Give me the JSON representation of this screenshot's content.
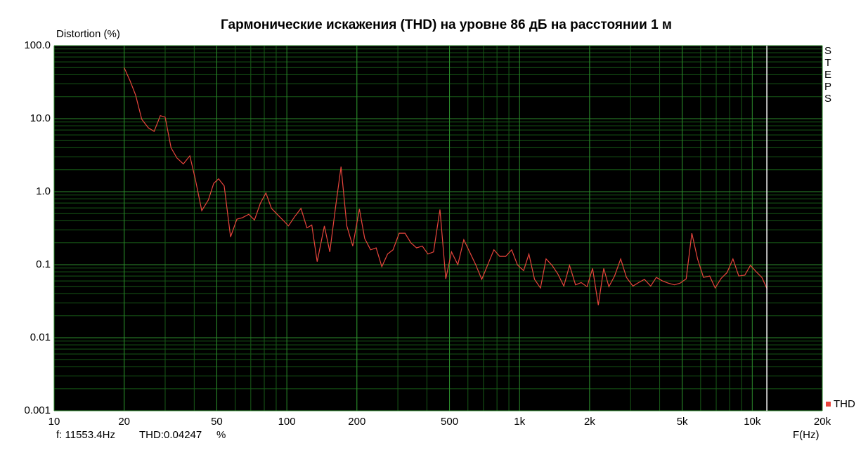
{
  "chart_data": {
    "type": "line",
    "title": "Гармонические искажения (THD) на уровне 86 дБ на расстоянии 1 м",
    "y_label": "Distortion (%)",
    "x_label": "F(Hz)",
    "side_label": "STEPS",
    "log_x": true,
    "log_y": true,
    "grid": true,
    "xlim": [
      10,
      20000
    ],
    "ylim": [
      0.001,
      100
    ],
    "xticks": [
      10,
      20,
      50,
      100,
      200,
      500,
      {
        "value": 1000,
        "label": "1k"
      },
      {
        "value": 2000,
        "label": "2k"
      },
      {
        "value": 5000,
        "label": "5k"
      },
      {
        "value": 10000,
        "label": "10k"
      },
      {
        "value": 20000,
        "label": "20k"
      }
    ],
    "yticks": [
      0.001,
      0.01,
      0.1,
      {
        "value": 1,
        "label": "1.0"
      },
      {
        "value": 10,
        "label": "10.0"
      },
      {
        "value": 100,
        "label": "100.0"
      }
    ],
    "x": [
      20,
      21.2,
      22.4,
      23.8,
      25.4,
      26.9,
      28.6,
      30,
      31.8,
      33.7,
      35.9,
      38.3,
      40.4,
      43.1,
      46,
      48.5,
      50.9,
      53.8,
      57.3,
      61,
      64.4,
      68.6,
      72.6,
      76.9,
      81.3,
      85.9,
      90.9,
      96.1,
      101.6,
      108.3,
      115,
      122,
      128,
      135,
      145,
      153,
      162,
      171,
      181,
      192,
      205,
      216,
      229,
      242,
      256,
      271,
      286,
      304,
      322,
      341,
      361,
      382,
      404,
      427,
      455,
      482,
      510,
      543,
      576,
      610,
      648,
      688,
      729,
      776,
      822,
      872,
      925,
      980,
      1041,
      1097,
      1160,
      1230,
      1300,
      1380,
      1460,
      1550,
      1640,
      1740,
      1840,
      1950,
      2060,
      2180,
      2300,
      2420,
      2560,
      2720,
      2880,
      3070,
      3250,
      3440,
      3660,
      3870,
      4110,
      4350,
      4630,
      4900,
      5200,
      5500,
      5820,
      6170,
      6560,
      6930,
      7350,
      7790,
      8260,
      8750,
      9290,
      9820,
      10400,
      11000,
      11600
    ],
    "series": [
      {
        "name": "THD",
        "color": "#e8453c",
        "values": [
          50,
          33,
          21,
          9.8,
          7.5,
          6.7,
          11,
          10.5,
          4,
          2.9,
          2.4,
          3.1,
          1.5,
          0.55,
          0.77,
          1.3,
          1.5,
          1.2,
          0.24,
          0.42,
          0.44,
          0.49,
          0.41,
          0.69,
          0.96,
          0.59,
          0.49,
          0.41,
          0.34,
          0.46,
          0.59,
          0.32,
          0.35,
          0.11,
          0.34,
          0.15,
          0.62,
          2.2,
          0.34,
          0.18,
          0.58,
          0.23,
          0.16,
          0.17,
          0.094,
          0.14,
          0.16,
          0.27,
          0.27,
          0.2,
          0.17,
          0.18,
          0.14,
          0.15,
          0.57,
          0.064,
          0.15,
          0.1,
          0.22,
          0.15,
          0.1,
          0.063,
          0.099,
          0.16,
          0.13,
          0.13,
          0.16,
          0.099,
          0.083,
          0.14,
          0.063,
          0.048,
          0.12,
          0.098,
          0.075,
          0.051,
          0.098,
          0.053,
          0.057,
          0.05,
          0.089,
          0.028,
          0.089,
          0.05,
          0.07,
          0.12,
          0.067,
          0.051,
          0.057,
          0.063,
          0.051,
          0.067,
          0.06,
          0.056,
          0.053,
          0.056,
          0.064,
          0.27,
          0.12,
          0.067,
          0.07,
          0.048,
          0.065,
          0.078,
          0.12,
          0.07,
          0.072,
          0.098,
          0.08,
          0.067,
          0.046
        ]
      }
    ],
    "cursor": {
      "frequency": 11553.4,
      "frequency_text": "f: 11553.4Hz",
      "value_text": "THD:0.04247",
      "unit": "%"
    }
  }
}
